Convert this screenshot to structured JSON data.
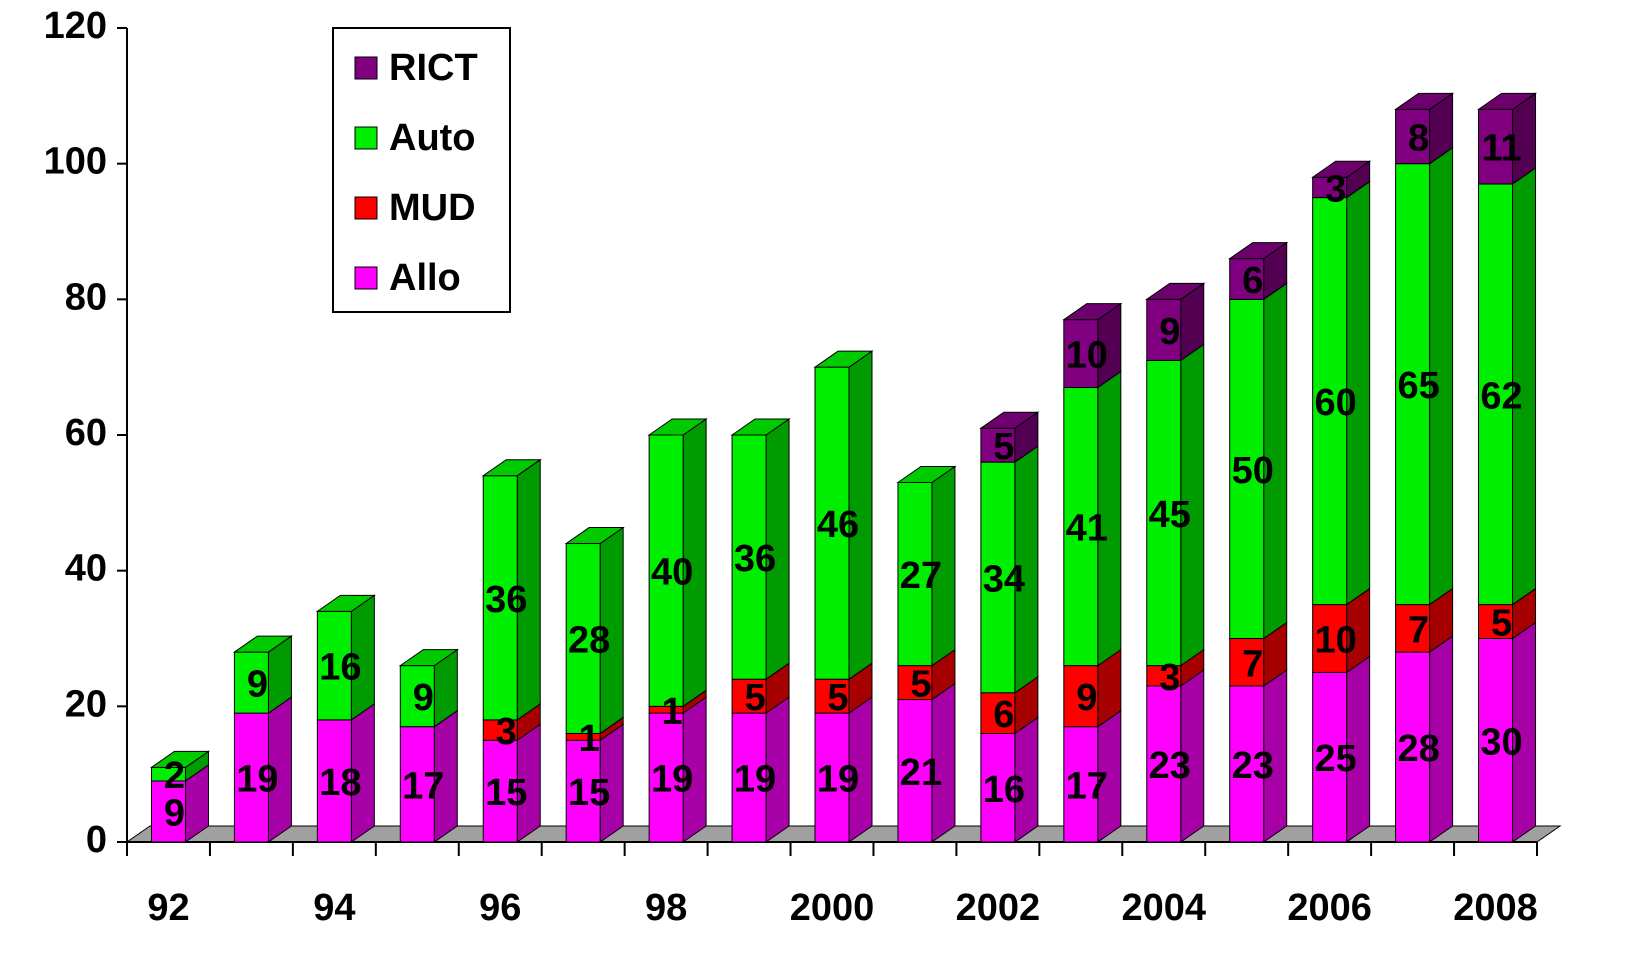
{
  "chart_data": {
    "type": "bar",
    "stacked": true,
    "categories": [
      "92",
      null,
      "94",
      null,
      "96",
      null,
      "98",
      null,
      "2000",
      null,
      "2002",
      null,
      "2004",
      null,
      "2006",
      null,
      "2008"
    ],
    "series": [
      {
        "name": "Allo",
        "color": "#ff00ff",
        "values": [
          9,
          19,
          18,
          17,
          15,
          15,
          19,
          19,
          19,
          21,
          16,
          17,
          23,
          23,
          25,
          28,
          30
        ]
      },
      {
        "name": "MUD",
        "color": "#ff0000",
        "values": [
          null,
          null,
          null,
          null,
          3,
          1,
          1,
          5,
          5,
          5,
          6,
          9,
          3,
          7,
          10,
          7,
          5
        ]
      },
      {
        "name": "Auto",
        "color": "#00ee00",
        "values": [
          2,
          9,
          16,
          9,
          36,
          28,
          40,
          36,
          46,
          27,
          34,
          41,
          45,
          50,
          60,
          65,
          62
        ]
      },
      {
        "name": "RICT",
        "color": "#800080",
        "values": [
          null,
          null,
          null,
          null,
          null,
          null,
          null,
          null,
          null,
          null,
          5,
          10,
          9,
          6,
          3,
          8,
          11
        ]
      }
    ],
    "ylim": [
      0,
      120
    ],
    "yticks": [
      0,
      20,
      40,
      60,
      80,
      100,
      120
    ],
    "legend": "top-left"
  }
}
